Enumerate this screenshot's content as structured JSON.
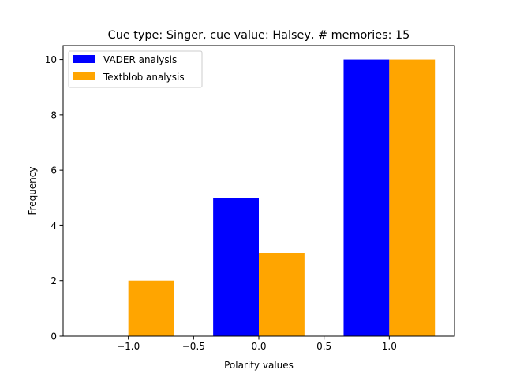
{
  "chart_data": {
    "type": "bar",
    "title": "Cue type: Singer, cue value: Halsey, # memories: 15",
    "xlabel": "Polarity values",
    "ylabel": "Frequency",
    "xlim": [
      -1.5,
      1.5
    ],
    "ylim": [
      0,
      10.5
    ],
    "grid": false,
    "legend_position": "top-left",
    "bar_width": 0.35,
    "xticks": [
      -1.0,
      -0.5,
      0.0,
      0.5,
      1.0
    ],
    "xtick_labels": [
      "−1.0",
      "−0.5",
      "0.0",
      "0.5",
      "1.0"
    ],
    "yticks": [
      0,
      2,
      4,
      6,
      8,
      10
    ],
    "ytick_labels": [
      "0",
      "2",
      "4",
      "6",
      "8",
      "10"
    ],
    "categories": [
      -1.0,
      0.0,
      1.0
    ],
    "series": [
      {
        "name": "VADER analysis",
        "color": "#0000ff",
        "offset": -0.175,
        "values": [
          0,
          5,
          10
        ]
      },
      {
        "name": "Textblob analysis",
        "color": "#ffa500",
        "offset": 0.175,
        "values": [
          2,
          3,
          10
        ]
      }
    ]
  }
}
